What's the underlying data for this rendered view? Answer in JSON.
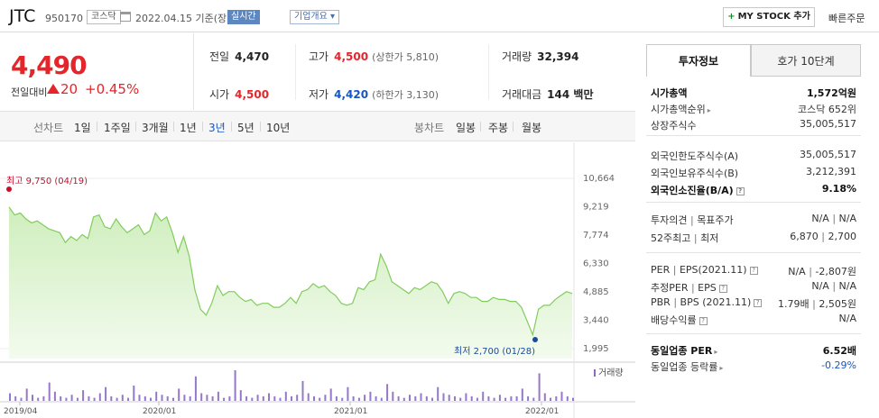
{
  "header": {
    "name": "JTC",
    "code": "950170",
    "market": "코스닥",
    "as_of": "2022.04.15 기준(장마감)",
    "realtime_label": "실시간",
    "company_label": "기업개요 ▾",
    "mystock_label": "MY STOCK 추가",
    "quick_order": "빠른주문"
  },
  "price": {
    "current": "4,490",
    "change_label": "전일대비",
    "change": "20",
    "change_rate": "+0.45%"
  },
  "quote": {
    "prev_label": "전일",
    "prev": "4,470",
    "high_label": "고가",
    "high": "4,500",
    "upper_limit": "(상한가 5,810)",
    "volume_label": "거래량",
    "volume": "32,394",
    "open_label": "시가",
    "open": "4,500",
    "low_label": "저가",
    "low": "4,420",
    "lower_limit": "(하한가 3,130)",
    "amount_label": "거래대금",
    "amount": "144 백만"
  },
  "period_bar": {
    "line_label": "선차트",
    "line_periods": [
      "1일",
      "1주일",
      "3개월",
      "1년",
      "3년",
      "5년",
      "10년"
    ],
    "candle_label": "봉차트",
    "candle_periods": [
      "일봉",
      "주봉",
      "월봉"
    ]
  },
  "right_panel": {
    "tabs": [
      "투자정보",
      "호가 10단계"
    ],
    "market_cap_label": "시가총액",
    "market_cap": "1,572억원",
    "rank_label": "시가총액순위",
    "rank": "코스닥 652위",
    "shares_label": "상장주식수",
    "shares": "35,005,517",
    "foreign_limit_label": "외국인한도주식수(A)",
    "foreign_limit": "35,005,517",
    "foreign_hold_label": "외국인보유주식수(B)",
    "foreign_hold": "3,212,391",
    "foreign_ratio_label": "외국인소진율(B/A)",
    "foreign_ratio": "9.18%",
    "opinion_label": "투자의견",
    "target_label": "목표주가",
    "opinion": "N/A",
    "target": "N/A",
    "wk52_label": "52주최고",
    "wk52_low_label": "최저",
    "wk52_high": "6,870",
    "wk52_low": "2,700",
    "per_label": "PER",
    "eps_label": "EPS(2021.11)",
    "per": "N/A",
    "eps": "-2,807원",
    "est_per_label": "추정PER",
    "est_eps_label": "EPS",
    "est_per": "N/A",
    "est_eps": "N/A",
    "pbr_label": "PBR",
    "bps_label": "BPS (2021.11)",
    "pbr": "1.79배",
    "bps": "2,505원",
    "div_label": "배당수익률",
    "div": "N/A",
    "sector_per_label": "동일업종 PER",
    "sector_per": "6.52배",
    "sector_rate_label": "동일업종 등락률",
    "sector_rate": "-0.29%"
  },
  "chart_data": {
    "type": "area",
    "y_ticks": [
      "10,664",
      "9,219",
      "7,774",
      "6,330",
      "4,885",
      "3,440",
      "1,995"
    ],
    "ylim": [
      1995,
      10664
    ],
    "x_ticks": [
      "2019/04",
      "2020/01",
      "2021/01",
      "2022/01"
    ],
    "high_annotation": "최고 9,750 (04/19)",
    "low_annotation": "최저 2,700 (01/28)",
    "volume_label": "거래량",
    "colors": {
      "line": "#82cc5d",
      "fill": "#e4f6d6",
      "volume": "#9678c8",
      "high": "#c8102e",
      "low": "#1a4aa0"
    },
    "price_series": [
      9200,
      8800,
      8900,
      8600,
      8400,
      8500,
      8300,
      8100,
      8000,
      7900,
      7400,
      7700,
      7500,
      7800,
      7600,
      8700,
      8800,
      8200,
      8100,
      8600,
      8200,
      7900,
      8100,
      8300,
      7800,
      8000,
      8900,
      8500,
      8700,
      7900,
      6900,
      7700,
      6700,
      5000,
      4000,
      3700,
      4300,
      5200,
      4700,
      4900,
      4900,
      4600,
      4400,
      4500,
      4200,
      4300,
      4300,
      4100,
      4100,
      4300,
      4600,
      4300,
      4900,
      5000,
      5300,
      5100,
      5200,
      4900,
      4700,
      4300,
      4200,
      4300,
      5100,
      5000,
      5400,
      5500,
      6800,
      6200,
      5400,
      5200,
      5000,
      4800,
      5100,
      5000,
      5200,
      5400,
      5300,
      4900,
      4300,
      4800,
      4900,
      4800,
      4600,
      4600,
      4400,
      4400,
      4600,
      4500,
      4500,
      4400,
      4400,
      4100,
      3400,
      2700,
      4000,
      4200,
      4200,
      4500,
      4700,
      4900,
      4800
    ],
    "volume_series": [
      5,
      3,
      2,
      8,
      4,
      2,
      3,
      12,
      6,
      3,
      2,
      4,
      2,
      7,
      3,
      2,
      5,
      9,
      3,
      2,
      4,
      2,
      10,
      4,
      3,
      2,
      6,
      4,
      3,
      2,
      8,
      4,
      3,
      16,
      5,
      4,
      3,
      6,
      2,
      3,
      20,
      7,
      3,
      2,
      4,
      3,
      5,
      3,
      2,
      6,
      3,
      4,
      13,
      5,
      3,
      2,
      4,
      8,
      3,
      2,
      9,
      3,
      2,
      4,
      6,
      3,
      2,
      11,
      6,
      3,
      2,
      4,
      3,
      5,
      3,
      2,
      9,
      5,
      4,
      3,
      2,
      5,
      3,
      2,
      6,
      3,
      2,
      4,
      2,
      3,
      3,
      8,
      3,
      2,
      18,
      5,
      2,
      3,
      6,
      3,
      2
    ]
  }
}
